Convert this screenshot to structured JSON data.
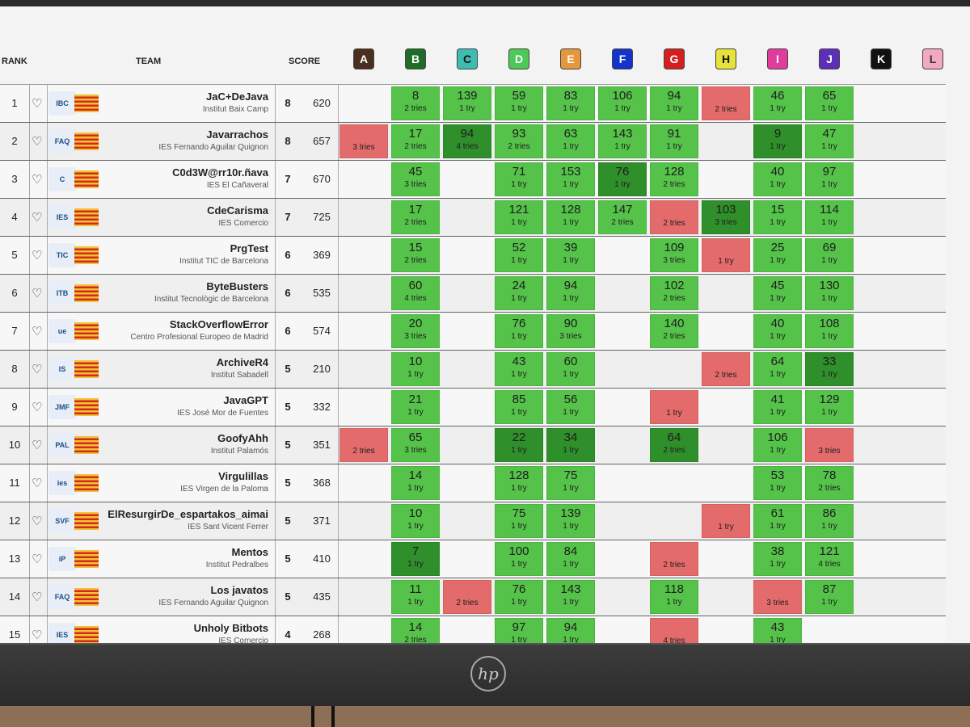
{
  "header": {
    "rank_label": "RANK",
    "team_label": "TEAM",
    "score_label": "SCORE"
  },
  "problems": [
    {
      "label": "A",
      "color": "#4a2e1f",
      "text_color": "#ffffff"
    },
    {
      "label": "B",
      "color": "#1f6b28",
      "text_color": "#ffffff"
    },
    {
      "label": "C",
      "color": "#3fbcb0",
      "text_color": "#111111"
    },
    {
      "label": "D",
      "color": "#4fc85a",
      "text_color": "#ffffff"
    },
    {
      "label": "E",
      "color": "#e6963c",
      "text_color": "#ffffff"
    },
    {
      "label": "F",
      "color": "#1433c8",
      "text_color": "#ffffff"
    },
    {
      "label": "G",
      "color": "#d51e1e",
      "text_color": "#ffffff"
    },
    {
      "label": "H",
      "color": "#e6e23a",
      "text_color": "#111111"
    },
    {
      "label": "I",
      "color": "#e03c9c",
      "text_color": "#ffffff"
    },
    {
      "label": "J",
      "color": "#5e2fb4",
      "text_color": "#ffffff"
    },
    {
      "label": "K",
      "color": "#111111",
      "text_color": "#ffffff"
    },
    {
      "label": "L",
      "color": "#f2a8c0",
      "text_color": "#333333"
    }
  ],
  "teams": [
    {
      "rank": "1",
      "name": "JaC+DeJava",
      "inst": "Institut Baix Camp",
      "solved": "8",
      "penalty": "620",
      "logo": "IBC",
      "cells": [
        null,
        {
          "t": "8",
          "a": "2 tries",
          "s": "ok"
        },
        {
          "t": "139",
          "a": "1 try",
          "s": "ok"
        },
        {
          "t": "59",
          "a": "1 try",
          "s": "ok"
        },
        {
          "t": "83",
          "a": "1 try",
          "s": "ok"
        },
        {
          "t": "106",
          "a": "1 try",
          "s": "ok"
        },
        {
          "t": "94",
          "a": "1 try",
          "s": "ok"
        },
        {
          "a": "2 tries",
          "s": "fail"
        },
        {
          "t": "46",
          "a": "1 try",
          "s": "ok"
        },
        {
          "t": "65",
          "a": "1 try",
          "s": "ok"
        },
        null,
        null
      ]
    },
    {
      "rank": "2",
      "name": "Javarrachos",
      "inst": "IES Fernando Aguilar Quignon",
      "solved": "8",
      "penalty": "657",
      "logo": "FAQ",
      "cells": [
        {
          "a": "3 tries",
          "s": "fail"
        },
        {
          "t": "17",
          "a": "2 tries",
          "s": "ok"
        },
        {
          "t": "94",
          "a": "4 tries",
          "s": "first"
        },
        {
          "t": "93",
          "a": "2 tries",
          "s": "ok"
        },
        {
          "t": "63",
          "a": "1 try",
          "s": "ok"
        },
        {
          "t": "143",
          "a": "1 try",
          "s": "ok"
        },
        {
          "t": "91",
          "a": "1 try",
          "s": "ok"
        },
        null,
        {
          "t": "9",
          "a": "1 try",
          "s": "first"
        },
        {
          "t": "47",
          "a": "1 try",
          "s": "ok"
        },
        null,
        null
      ]
    },
    {
      "rank": "3",
      "name": "C0d3W@rr10r.ñava",
      "inst": "IES El Cañaveral",
      "solved": "7",
      "penalty": "670",
      "logo": "C",
      "cells": [
        null,
        {
          "t": "45",
          "a": "3 tries",
          "s": "ok"
        },
        null,
        {
          "t": "71",
          "a": "1 try",
          "s": "ok"
        },
        {
          "t": "153",
          "a": "1 try",
          "s": "ok"
        },
        {
          "t": "76",
          "a": "1 try",
          "s": "first"
        },
        {
          "t": "128",
          "a": "2 tries",
          "s": "ok"
        },
        null,
        {
          "t": "40",
          "a": "1 try",
          "s": "ok"
        },
        {
          "t": "97",
          "a": "1 try",
          "s": "ok"
        },
        null,
        null
      ]
    },
    {
      "rank": "4",
      "name": "CdeCarisma",
      "inst": "IES Comercio",
      "solved": "7",
      "penalty": "725",
      "logo": "IES",
      "cells": [
        null,
        {
          "t": "17",
          "a": "2 tries",
          "s": "ok"
        },
        null,
        {
          "t": "121",
          "a": "1 try",
          "s": "ok"
        },
        {
          "t": "128",
          "a": "1 try",
          "s": "ok"
        },
        {
          "t": "147",
          "a": "2 tries",
          "s": "ok"
        },
        {
          "a": "2 tries",
          "s": "fail"
        },
        {
          "t": "103",
          "a": "3 tries",
          "s": "first"
        },
        {
          "t": "15",
          "a": "1 try",
          "s": "ok"
        },
        {
          "t": "114",
          "a": "1 try",
          "s": "ok"
        },
        null,
        null
      ]
    },
    {
      "rank": "5",
      "name": "PrgTest",
      "inst": "Institut TIC de Barcelona",
      "solved": "6",
      "penalty": "369",
      "logo": "TIC",
      "cells": [
        null,
        {
          "t": "15",
          "a": "2 tries",
          "s": "ok"
        },
        null,
        {
          "t": "52",
          "a": "1 try",
          "s": "ok"
        },
        {
          "t": "39",
          "a": "1 try",
          "s": "ok"
        },
        null,
        {
          "t": "109",
          "a": "3 tries",
          "s": "ok"
        },
        {
          "a": "1 try",
          "s": "fail"
        },
        {
          "t": "25",
          "a": "1 try",
          "s": "ok"
        },
        {
          "t": "69",
          "a": "1 try",
          "s": "ok"
        },
        null,
        null
      ]
    },
    {
      "rank": "6",
      "name": "ByteBusters",
      "inst": "Institut Tecnològic de Barcelona",
      "solved": "6",
      "penalty": "535",
      "logo": "ITB",
      "cells": [
        null,
        {
          "t": "60",
          "a": "4 tries",
          "s": "ok"
        },
        null,
        {
          "t": "24",
          "a": "1 try",
          "s": "ok"
        },
        {
          "t": "94",
          "a": "1 try",
          "s": "ok"
        },
        null,
        {
          "t": "102",
          "a": "2 tries",
          "s": "ok"
        },
        null,
        {
          "t": "45",
          "a": "1 try",
          "s": "ok"
        },
        {
          "t": "130",
          "a": "1 try",
          "s": "ok"
        },
        null,
        null
      ]
    },
    {
      "rank": "7",
      "name": "StackOverflowError",
      "inst": "Centro Profesional Europeo de Madrid",
      "solved": "6",
      "penalty": "574",
      "logo": "ue",
      "cells": [
        null,
        {
          "t": "20",
          "a": "3 tries",
          "s": "ok"
        },
        null,
        {
          "t": "76",
          "a": "1 try",
          "s": "ok"
        },
        {
          "t": "90",
          "a": "3 tries",
          "s": "ok"
        },
        null,
        {
          "t": "140",
          "a": "2 tries",
          "s": "ok"
        },
        null,
        {
          "t": "40",
          "a": "1 try",
          "s": "ok"
        },
        {
          "t": "108",
          "a": "1 try",
          "s": "ok"
        },
        null,
        null
      ]
    },
    {
      "rank": "8",
      "name": "ArchiveR4",
      "inst": "Institut Sabadell",
      "solved": "5",
      "penalty": "210",
      "logo": "IS",
      "cells": [
        null,
        {
          "t": "10",
          "a": "1 try",
          "s": "ok"
        },
        null,
        {
          "t": "43",
          "a": "1 try",
          "s": "ok"
        },
        {
          "t": "60",
          "a": "1 try",
          "s": "ok"
        },
        null,
        null,
        {
          "a": "2 tries",
          "s": "fail"
        },
        {
          "t": "64",
          "a": "1 try",
          "s": "ok"
        },
        {
          "t": "33",
          "a": "1 try",
          "s": "first"
        },
        null,
        null
      ]
    },
    {
      "rank": "9",
      "name": "JavaGPT",
      "inst": "IES José Mor de Fuentes",
      "solved": "5",
      "penalty": "332",
      "logo": "JMF",
      "cells": [
        null,
        {
          "t": "21",
          "a": "1 try",
          "s": "ok"
        },
        null,
        {
          "t": "85",
          "a": "1 try",
          "s": "ok"
        },
        {
          "t": "56",
          "a": "1 try",
          "s": "ok"
        },
        null,
        {
          "a": "1 try",
          "s": "fail"
        },
        null,
        {
          "t": "41",
          "a": "1 try",
          "s": "ok"
        },
        {
          "t": "129",
          "a": "1 try",
          "s": "ok"
        },
        null,
        null
      ]
    },
    {
      "rank": "10",
      "name": "GoofyAhh",
      "inst": "Institut Palamós",
      "solved": "5",
      "penalty": "351",
      "logo": "PAL",
      "cells": [
        {
          "a": "2 tries",
          "s": "fail"
        },
        {
          "t": "65",
          "a": "3 tries",
          "s": "ok"
        },
        null,
        {
          "t": "22",
          "a": "1 try",
          "s": "first"
        },
        {
          "t": "34",
          "a": "1 try",
          "s": "first"
        },
        null,
        {
          "t": "64",
          "a": "2 tries",
          "s": "first"
        },
        null,
        {
          "t": "106",
          "a": "1 try",
          "s": "ok"
        },
        {
          "a": "3 tries",
          "s": "fail"
        },
        null,
        null
      ]
    },
    {
      "rank": "11",
      "name": "Virgulillas",
      "inst": "IES Virgen de la Paloma",
      "solved": "5",
      "penalty": "368",
      "logo": "ies",
      "cells": [
        null,
        {
          "t": "14",
          "a": "1 try",
          "s": "ok"
        },
        null,
        {
          "t": "128",
          "a": "1 try",
          "s": "ok"
        },
        {
          "t": "75",
          "a": "1 try",
          "s": "ok"
        },
        null,
        null,
        null,
        {
          "t": "53",
          "a": "1 try",
          "s": "ok"
        },
        {
          "t": "78",
          "a": "2 tries",
          "s": "ok"
        },
        null,
        null
      ]
    },
    {
      "rank": "12",
      "name": "ElResurgirDe_espartakos_aimai",
      "inst": "IES Sant Vicent Ferrer",
      "solved": "5",
      "penalty": "371",
      "logo": "SVF",
      "cells": [
        null,
        {
          "t": "10",
          "a": "1 try",
          "s": "ok"
        },
        null,
        {
          "t": "75",
          "a": "1 try",
          "s": "ok"
        },
        {
          "t": "139",
          "a": "1 try",
          "s": "ok"
        },
        null,
        null,
        {
          "a": "1 try",
          "s": "fail"
        },
        {
          "t": "61",
          "a": "1 try",
          "s": "ok"
        },
        {
          "t": "86",
          "a": "1 try",
          "s": "ok"
        },
        null,
        null
      ]
    },
    {
      "rank": "13",
      "name": "Mentos",
      "inst": "Institut Pedralbes",
      "solved": "5",
      "penalty": "410",
      "logo": "iP",
      "cells": [
        null,
        {
          "t": "7",
          "a": "1 try",
          "s": "first"
        },
        null,
        {
          "t": "100",
          "a": "1 try",
          "s": "ok"
        },
        {
          "t": "84",
          "a": "1 try",
          "s": "ok"
        },
        null,
        {
          "a": "2 tries",
          "s": "fail"
        },
        null,
        {
          "t": "38",
          "a": "1 try",
          "s": "ok"
        },
        {
          "t": "121",
          "a": "4 tries",
          "s": "ok"
        },
        null,
        null
      ]
    },
    {
      "rank": "14",
      "name": "Los javatos",
      "inst": "IES Fernando Aguilar Quignon",
      "solved": "5",
      "penalty": "435",
      "logo": "FAQ",
      "cells": [
        null,
        {
          "t": "11",
          "a": "1 try",
          "s": "ok"
        },
        {
          "a": "2 tries",
          "s": "fail"
        },
        {
          "t": "76",
          "a": "1 try",
          "s": "ok"
        },
        {
          "t": "143",
          "a": "1 try",
          "s": "ok"
        },
        null,
        {
          "t": "118",
          "a": "1 try",
          "s": "ok"
        },
        null,
        {
          "a": "3 tries",
          "s": "fail"
        },
        {
          "t": "87",
          "a": "1 try",
          "s": "ok"
        },
        null,
        null
      ]
    },
    {
      "rank": "15",
      "name": "Unholy Bitbots",
      "inst": "IES Comercio",
      "solved": "4",
      "penalty": "268",
      "logo": "IES",
      "cells": [
        null,
        {
          "t": "14",
          "a": "2 tries",
          "s": "ok"
        },
        null,
        {
          "t": "97",
          "a": "1 try",
          "s": "ok"
        },
        {
          "t": "94",
          "a": "1 try",
          "s": "ok"
        },
        null,
        {
          "a": "4 tries",
          "s": "fail"
        },
        null,
        {
          "t": "43",
          "a": "1 try",
          "s": "ok"
        },
        null,
        null,
        null
      ]
    }
  ],
  "monitor": {
    "brand": "hp"
  }
}
